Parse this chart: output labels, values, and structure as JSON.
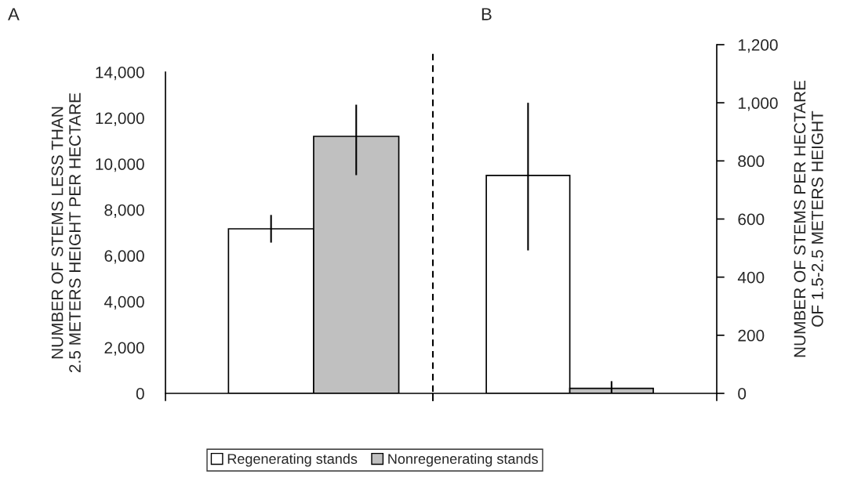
{
  "chart_data": [
    {
      "type": "bar",
      "title": "A",
      "ylabel": "NUMBER OF STEMS LESS THAN\n2.5 METERS HEIGHT PER HECTARE",
      "categories": [
        null
      ],
      "legend": "bottom",
      "grid": false,
      "series": [
        {
          "name": "Regenerating stands",
          "color": "#ffffff",
          "values": [
            7170
          ],
          "errors": [
            [
              6570,
              7775
            ]
          ]
        },
        {
          "name": "Nonregenerating stands",
          "color": "#c0c0c0",
          "values": [
            11200
          ],
          "errors": [
            [
              9510,
              12580
            ]
          ]
        }
      ],
      "ylim": [
        0,
        14000
      ],
      "yticks": [
        0,
        {
          "value": 2000,
          "label": "2,000"
        },
        {
          "value": 4000,
          "label": "4,000"
        },
        {
          "value": 6000,
          "label": "6,000"
        },
        {
          "value": 8000,
          "label": "8,000"
        },
        {
          "value": 10000,
          "label": "10,000"
        },
        {
          "value": 12000,
          "label": "12,000"
        },
        {
          "value": 14000,
          "label": "14,000"
        }
      ]
    },
    {
      "type": "bar",
      "title": "B",
      "ylabel": "NUMBER OF STEMS PER HECTARE\nOF 1.5-2.5 METERS HEIGHT",
      "categories": [
        null
      ],
      "grid": false,
      "series": [
        {
          "color": "#ffffff",
          "values": [
            750
          ],
          "errors": [
            [
              492,
              1000
            ]
          ]
        },
        {
          "color": "#c0c0c0",
          "values": [
            17
          ],
          "errors": [
            [
              0,
              42
            ]
          ]
        }
      ],
      "ylim": [
        0,
        1200
      ],
      "yticks": [
        0,
        200,
        400,
        600,
        800,
        {
          "value": 1000,
          "label": "1,000"
        },
        {
          "value": 1200,
          "label": "1,200"
        }
      ]
    }
  ]
}
